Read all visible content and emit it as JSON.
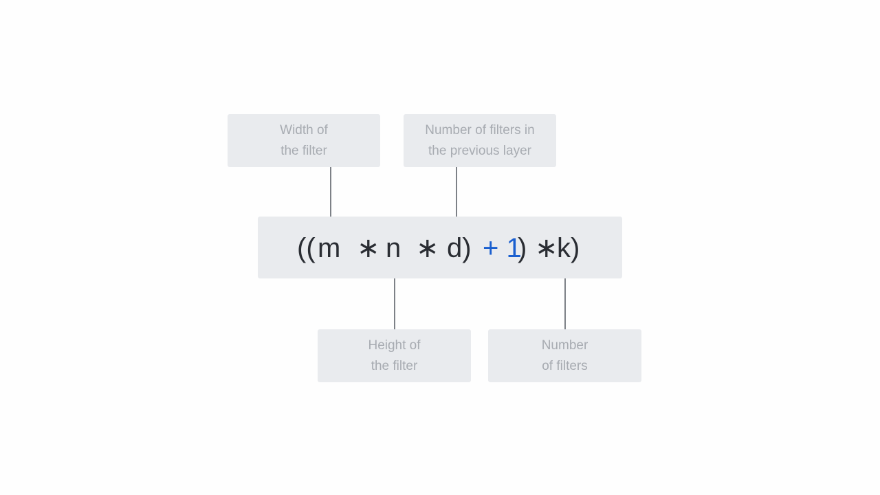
{
  "labels": {
    "width_of_filter": [
      "Width of",
      "the filter"
    ],
    "filters_previous_layer": [
      "Number of filters in",
      "the previous layer"
    ],
    "height_of_filter": [
      "Height of",
      "the filter"
    ],
    "number_of_filters": [
      "Number",
      "of filters"
    ]
  },
  "formula": {
    "open_parens": "((",
    "m": "m",
    "op1": "∗",
    "n": "n",
    "op2": "∗",
    "d": "d)",
    "plus_one": "+ 1",
    "close_paren": ")",
    "op3": "∗",
    "k": "k)"
  },
  "colors": {
    "box_background": "#e9ebee",
    "label_text": "#a7abb1",
    "formula_text": "#2a2d33",
    "accent": "#1a5fcf",
    "connector": "#7d8187"
  }
}
